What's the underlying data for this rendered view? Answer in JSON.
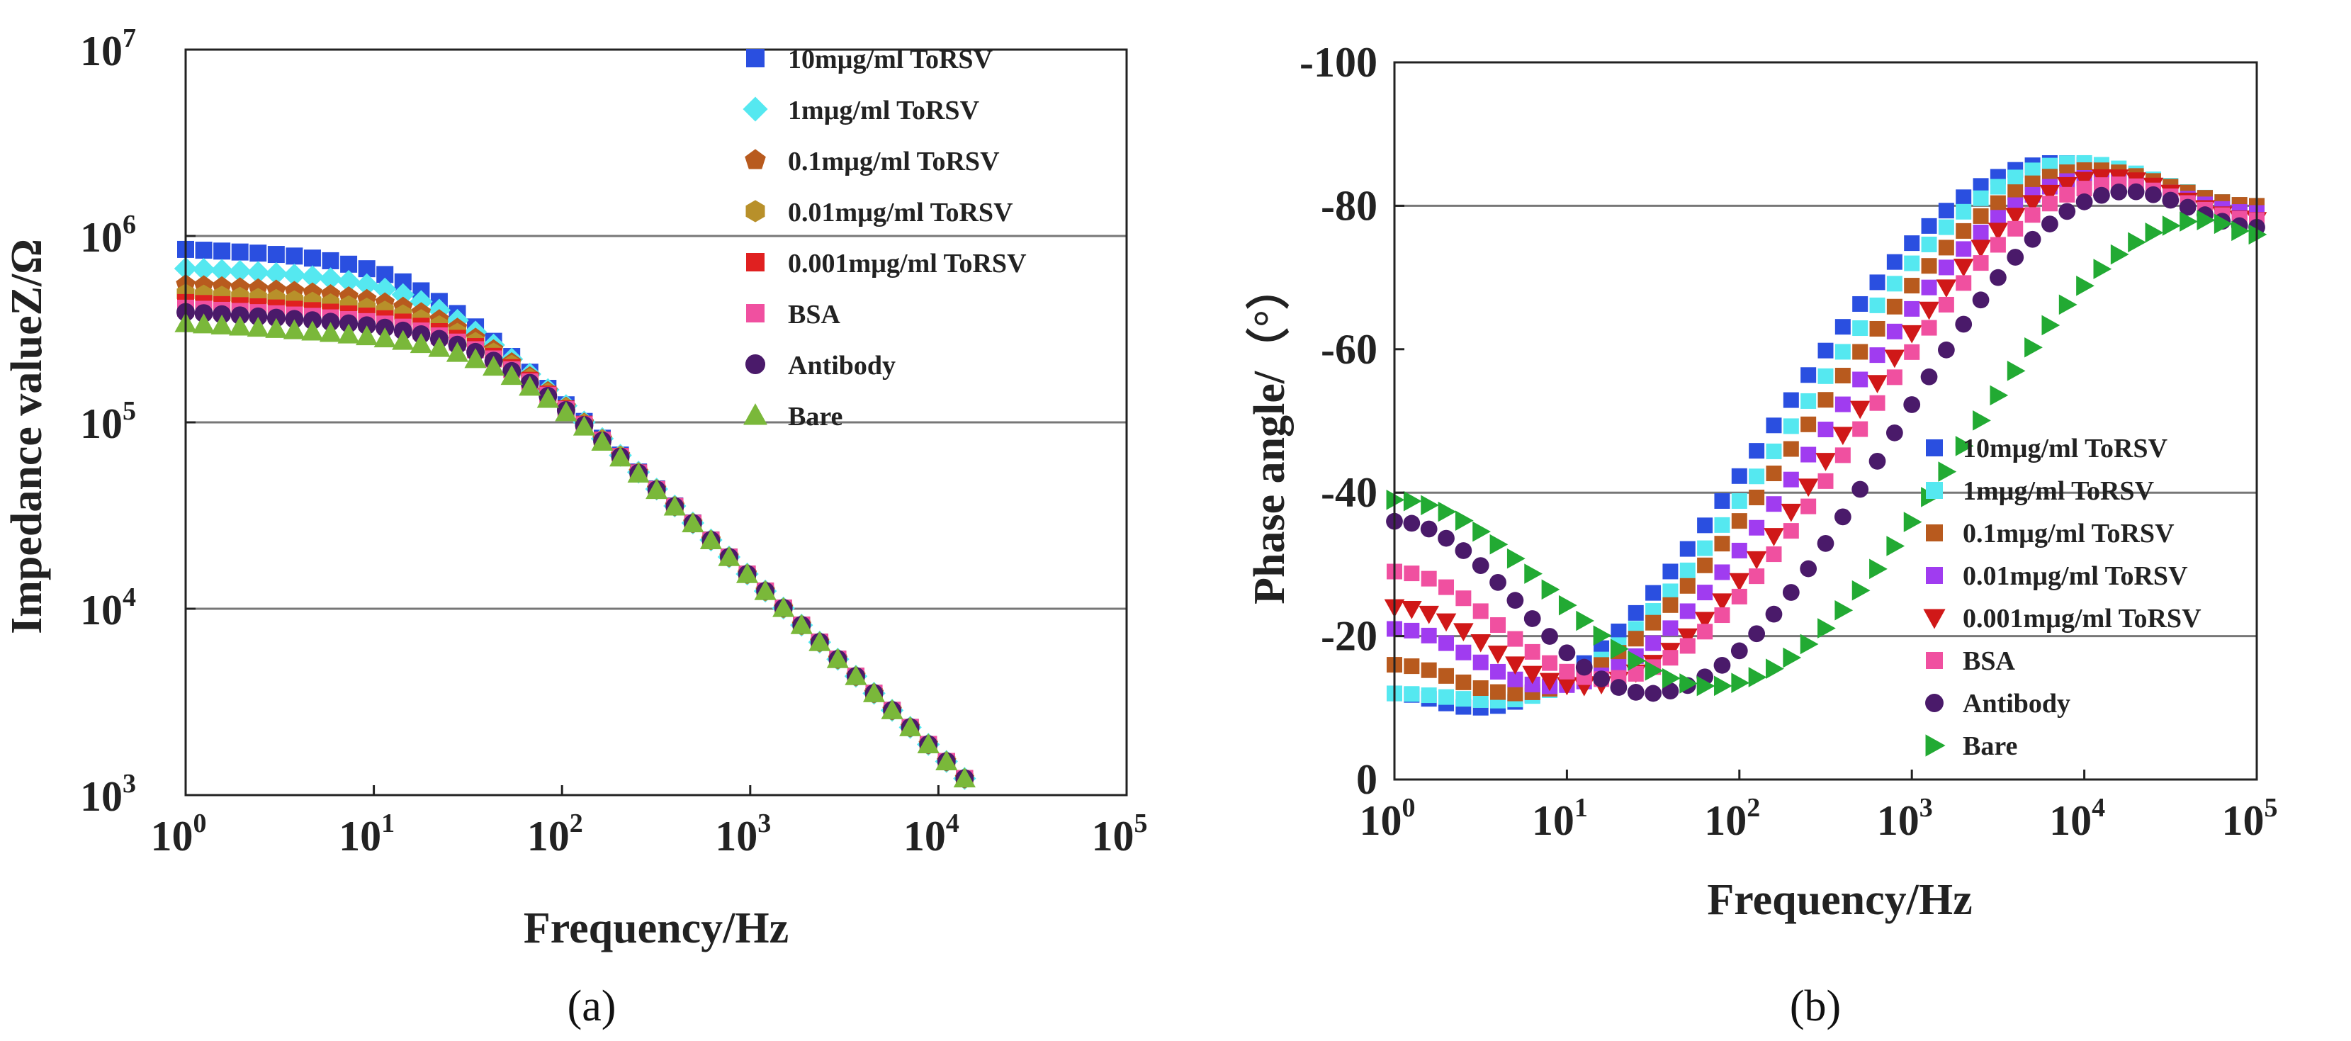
{
  "chart_data": [
    {
      "type": "scatter",
      "panel_label": "(a)",
      "xlabel": "Frequency/Hz",
      "ylabel": "Impedance valueZ/Ω",
      "x_scale": "log",
      "y_scale": "log",
      "xlim": [
        1,
        100000
      ],
      "ylim": [
        1000,
        10000000
      ],
      "x_ticks": [
        1,
        10,
        100,
        1000,
        10000,
        100000
      ],
      "y_ticks": [
        1000,
        10000,
        100000,
        1000000,
        10000000
      ],
      "x_tick_labels": [
        {
          "base": "10",
          "exp": "0"
        },
        {
          "base": "10",
          "exp": "1"
        },
        {
          "base": "10",
          "exp": "2"
        },
        {
          "base": "10",
          "exp": "3"
        },
        {
          "base": "10",
          "exp": "4"
        },
        {
          "base": "10",
          "exp": "5"
        }
      ],
      "y_tick_labels": [
        {
          "base": "10",
          "exp": "3"
        },
        {
          "base": "10",
          "exp": "4"
        },
        {
          "base": "10",
          "exp": "5"
        },
        {
          "base": "10",
          "exp": "6"
        },
        {
          "base": "10",
          "exp": "7"
        }
      ],
      "gridlines_y": [
        10000,
        100000,
        1000000
      ],
      "legend_position": "top-right",
      "series": [
        {
          "name": "10mµg/ml ToRSV",
          "color": "#2a4fe0",
          "marker": "square",
          "low_freq_value": 850000,
          "corner_freq": 700
        },
        {
          "name": "1mµg/ml ToRSV",
          "color": "#55e8f0",
          "marker": "diamond",
          "low_freq_value": 670000,
          "corner_freq": 850
        },
        {
          "name": "0.1mµg/ml ToRSV",
          "color": "#b85a1e",
          "marker": "pentagon",
          "low_freq_value": 550000,
          "corner_freq": 1000
        },
        {
          "name": "0.01mµg/ml ToRSV",
          "color": "#b8902a",
          "marker": "hexagon",
          "low_freq_value": 490000,
          "corner_freq": 1100
        },
        {
          "name": "0.001mµg/ml ToRSV",
          "color": "#e02020",
          "marker": "square",
          "low_freq_value": 440000,
          "corner_freq": 1200
        },
        {
          "name": "BSA",
          "color": "#f050a0",
          "marker": "square",
          "low_freq_value": 410000,
          "corner_freq": 1250
        },
        {
          "name": "Antibody",
          "color": "#4a1a6a",
          "marker": "circle",
          "low_freq_value": 390000,
          "corner_freq": 1300
        },
        {
          "name": "Bare",
          "color": "#7ab83a",
          "marker": "triangle-up",
          "low_freq_value": 340000,
          "corner_freq": 1600
        }
      ]
    },
    {
      "type": "scatter",
      "panel_label": "(b)",
      "xlabel": "Frequency/Hz",
      "ylabel": "Phase angle/（°）",
      "x_scale": "log",
      "xlim": [
        1,
        100000
      ],
      "ylim": [
        0,
        -100
      ],
      "x_ticks": [
        1,
        10,
        100,
        1000,
        10000,
        100000
      ],
      "y_ticks": [
        0,
        -20,
        -40,
        -60,
        -80,
        -100
      ],
      "x_tick_labels": [
        {
          "base": "10",
          "exp": "0"
        },
        {
          "base": "10",
          "exp": "1"
        },
        {
          "base": "10",
          "exp": "2"
        },
        {
          "base": "10",
          "exp": "3"
        },
        {
          "base": "10",
          "exp": "4"
        },
        {
          "base": "10",
          "exp": "5"
        }
      ],
      "y_tick_labels": [
        "0",
        "-20",
        "-40",
        "-60",
        "-80",
        "-100"
      ],
      "gridlines_y": [
        -20,
        -40,
        -80
      ],
      "legend_position": "bottom-right",
      "series": [
        {
          "name": "10mµg/ml ToRSV",
          "color": "#2a4fe0",
          "marker": "square",
          "start_value": -12,
          "min_value": -10,
          "min_freq": 3,
          "max_value": -86,
          "max_freq": 7000,
          "end_value": -79
        },
        {
          "name": "1mµg/ml ToRSV",
          "color": "#55e8f0",
          "marker": "square",
          "start_value": -12,
          "min_value": -11,
          "min_freq": 4,
          "max_value": -86,
          "max_freq": 9000,
          "end_value": -80
        },
        {
          "name": "0.1mµg/ml ToRSV",
          "color": "#b85a1e",
          "marker": "square",
          "start_value": -16,
          "min_value": -12,
          "min_freq": 5,
          "max_value": -85,
          "max_freq": 11000,
          "end_value": -80
        },
        {
          "name": "0.01mµg/ml ToRSV",
          "color": "#a03cf0",
          "marker": "square",
          "start_value": -21,
          "min_value": -13,
          "min_freq": 8,
          "max_value": -84,
          "max_freq": 12000,
          "end_value": -79
        },
        {
          "name": "0.001mµg/ml ToRSV",
          "color": "#d01818",
          "marker": "triangle-down",
          "start_value": -24,
          "min_value": -13,
          "min_freq": 12,
          "max_value": -84,
          "max_freq": 14000,
          "end_value": -78
        },
        {
          "name": "BSA",
          "color": "#f050a0",
          "marker": "square",
          "start_value": -29,
          "min_value": -14,
          "min_freq": 16,
          "max_value": -83,
          "max_freq": 15000,
          "end_value": -78
        },
        {
          "name": "Antibody",
          "color": "#4a1a6a",
          "marker": "circle",
          "start_value": -36,
          "min_value": -12,
          "min_freq": 30,
          "max_value": -82,
          "max_freq": 18000,
          "end_value": -77
        },
        {
          "name": "Bare",
          "color": "#22aa33",
          "marker": "triangle-right",
          "start_value": -39,
          "min_value": -13,
          "min_freq": 70,
          "max_value": -78,
          "max_freq": 50000,
          "end_value": -76
        }
      ]
    }
  ]
}
